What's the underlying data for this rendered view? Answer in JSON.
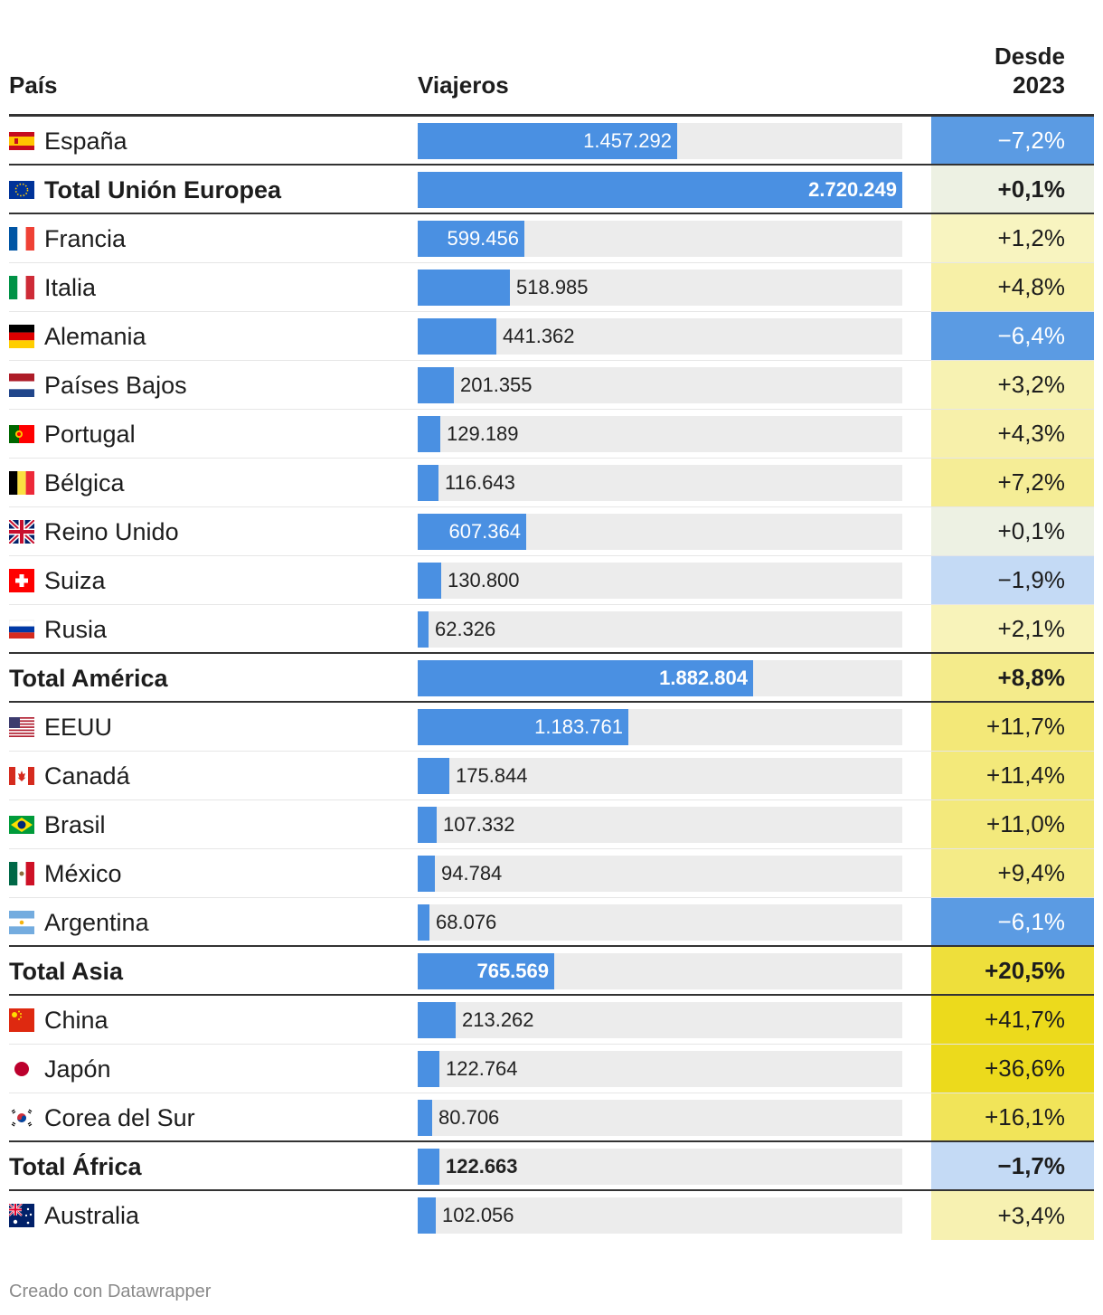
{
  "chart_data": {
    "type": "table",
    "columns": [
      "País",
      "Viajeros",
      "Desde 2023"
    ],
    "header": {
      "country": "País",
      "travelers": "Viajeros",
      "change_line1": "Desde",
      "change_line2": "2023"
    },
    "max_value": 2720249,
    "rows": [
      {
        "name": "España",
        "flag": "spain-flag-icon",
        "value": 1457292,
        "value_label": "1.457.292",
        "change": -7.2,
        "change_label": "−7,2%",
        "group": false
      },
      {
        "name": "Total Unión Europea",
        "flag": "eu-flag-icon",
        "value": 2720249,
        "value_label": "2.720.249",
        "change": 0.1,
        "change_label": "+0,1%",
        "group": true
      },
      {
        "name": "Francia",
        "flag": "france-flag-icon",
        "value": 599456,
        "value_label": "599.456",
        "change": 1.2,
        "change_label": "+1,2%",
        "group": false
      },
      {
        "name": "Italia",
        "flag": "italy-flag-icon",
        "value": 518985,
        "value_label": "518.985",
        "change": 4.8,
        "change_label": "+4,8%",
        "group": false
      },
      {
        "name": "Alemania",
        "flag": "germany-flag-icon",
        "value": 441362,
        "value_label": "441.362",
        "change": -6.4,
        "change_label": "−6,4%",
        "group": false
      },
      {
        "name": "Países Bajos",
        "flag": "netherlands-flag-icon",
        "value": 201355,
        "value_label": "201.355",
        "change": 3.2,
        "change_label": "+3,2%",
        "group": false
      },
      {
        "name": "Portugal",
        "flag": "portugal-flag-icon",
        "value": 129189,
        "value_label": "129.189",
        "change": 4.3,
        "change_label": "+4,3%",
        "group": false
      },
      {
        "name": "Bélgica",
        "flag": "belgium-flag-icon",
        "value": 116643,
        "value_label": "116.643",
        "change": 7.2,
        "change_label": "+7,2%",
        "group": false
      },
      {
        "name": "Reino Unido",
        "flag": "uk-flag-icon",
        "value": 607364,
        "value_label": "607.364",
        "change": 0.1,
        "change_label": "+0,1%",
        "group": false
      },
      {
        "name": "Suiza",
        "flag": "switzerland-flag-icon",
        "value": 130800,
        "value_label": "130.800",
        "change": -1.9,
        "change_label": "−1,9%",
        "group": false
      },
      {
        "name": "Rusia",
        "flag": "russia-flag-icon",
        "value": 62326,
        "value_label": "62.326",
        "change": 2.1,
        "change_label": "+2,1%",
        "group": false
      },
      {
        "name": "Total América",
        "flag": "",
        "value": 1882804,
        "value_label": "1.882.804",
        "change": 8.8,
        "change_label": "+8,8%",
        "group": true
      },
      {
        "name": "EEUU",
        "flag": "usa-flag-icon",
        "value": 1183761,
        "value_label": "1.183.761",
        "change": 11.7,
        "change_label": "+11,7%",
        "group": false
      },
      {
        "name": "Canadá",
        "flag": "canada-flag-icon",
        "value": 175844,
        "value_label": "175.844",
        "change": 11.4,
        "change_label": "+11,4%",
        "group": false
      },
      {
        "name": "Brasil",
        "flag": "brazil-flag-icon",
        "value": 107332,
        "value_label": "107.332",
        "change": 11.0,
        "change_label": "+11,0%",
        "group": false
      },
      {
        "name": "México",
        "flag": "mexico-flag-icon",
        "value": 94784,
        "value_label": "94.784",
        "change": 9.4,
        "change_label": "+9,4%",
        "group": false
      },
      {
        "name": "Argentina",
        "flag": "argentina-flag-icon",
        "value": 68076,
        "value_label": "68.076",
        "change": -6.1,
        "change_label": "−6,1%",
        "group": false
      },
      {
        "name": "Total Asia",
        "flag": "",
        "value": 765569,
        "value_label": "765.569",
        "change": 20.5,
        "change_label": "+20,5%",
        "group": true
      },
      {
        "name": "China",
        "flag": "china-flag-icon",
        "value": 213262,
        "value_label": "213.262",
        "change": 41.7,
        "change_label": "+41,7%",
        "group": false
      },
      {
        "name": "Japón",
        "flag": "japan-flag-icon",
        "value": 122764,
        "value_label": "122.764",
        "change": 36.6,
        "change_label": "+36,6%",
        "group": false
      },
      {
        "name": "Corea del Sur",
        "flag": "south-korea-flag-icon",
        "value": 80706,
        "value_label": "80.706",
        "change": 16.1,
        "change_label": "+16,1%",
        "group": false
      },
      {
        "name": "Total África",
        "flag": "",
        "value": 122663,
        "value_label": "122.663",
        "change": -1.7,
        "change_label": "−1,7%",
        "group": true
      },
      {
        "name": "Australia",
        "flag": "australia-flag-icon",
        "value": 102056,
        "value_label": "102.056",
        "change": 3.4,
        "change_label": "+3,4%",
        "group": false
      }
    ]
  },
  "colors": {
    "bar": "#4a90e2",
    "track": "#ececec",
    "neg_strong": "#5b9be3",
    "neg_light": "#c4daf5",
    "neutral": "#edf1e3"
  },
  "footer": {
    "credit": "Creado con Datawrapper"
  }
}
